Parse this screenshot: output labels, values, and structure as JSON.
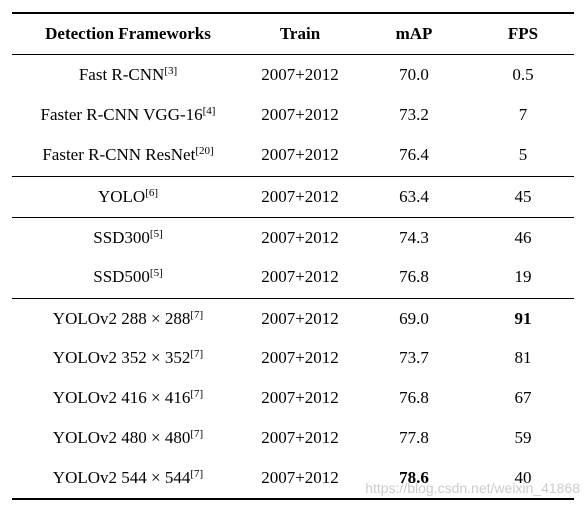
{
  "header": {
    "framework": "Detection Frameworks",
    "train": "Train",
    "map": "mAP",
    "fps": "FPS"
  },
  "rows": [
    {
      "name": "Fast R-CNN",
      "ref": "[3]",
      "train": "2007+2012",
      "map": "70.0",
      "fps": "0.5"
    },
    {
      "name": "Faster R-CNN VGG-16",
      "ref": "[4]",
      "train": "2007+2012",
      "map": "73.2",
      "fps": "7"
    },
    {
      "name": "Faster R-CNN ResNet",
      "ref": "[20]",
      "train": "2007+2012",
      "map": "76.4",
      "fps": "5"
    },
    {
      "name": "YOLO",
      "ref": "[6]",
      "train": "2007+2012",
      "map": "63.4",
      "fps": "45"
    },
    {
      "name": "SSD300",
      "ref": "[5]",
      "train": "2007+2012",
      "map": "74.3",
      "fps": "46"
    },
    {
      "name": "SSD500",
      "ref": "[5]",
      "train": "2007+2012",
      "map": "76.8",
      "fps": "19"
    },
    {
      "name": "YOLOv2 288 × 288",
      "ref": "[7]",
      "train": "2007+2012",
      "map": "69.0",
      "fps": "91"
    },
    {
      "name": "YOLOv2 352 × 352",
      "ref": "[7]",
      "train": "2007+2012",
      "map": "73.7",
      "fps": "81"
    },
    {
      "name": "YOLOv2 416 × 416",
      "ref": "[7]",
      "train": "2007+2012",
      "map": "76.8",
      "fps": "67"
    },
    {
      "name": "YOLOv2 480 × 480",
      "ref": "[7]",
      "train": "2007+2012",
      "map": "77.8",
      "fps": "59"
    },
    {
      "name": "YOLOv2 544 × 544",
      "ref": "[7]",
      "train": "2007+2012",
      "map": "78.6",
      "fps": "40"
    }
  ],
  "watermark": "https://blog.csdn.net/weixin_41868"
}
